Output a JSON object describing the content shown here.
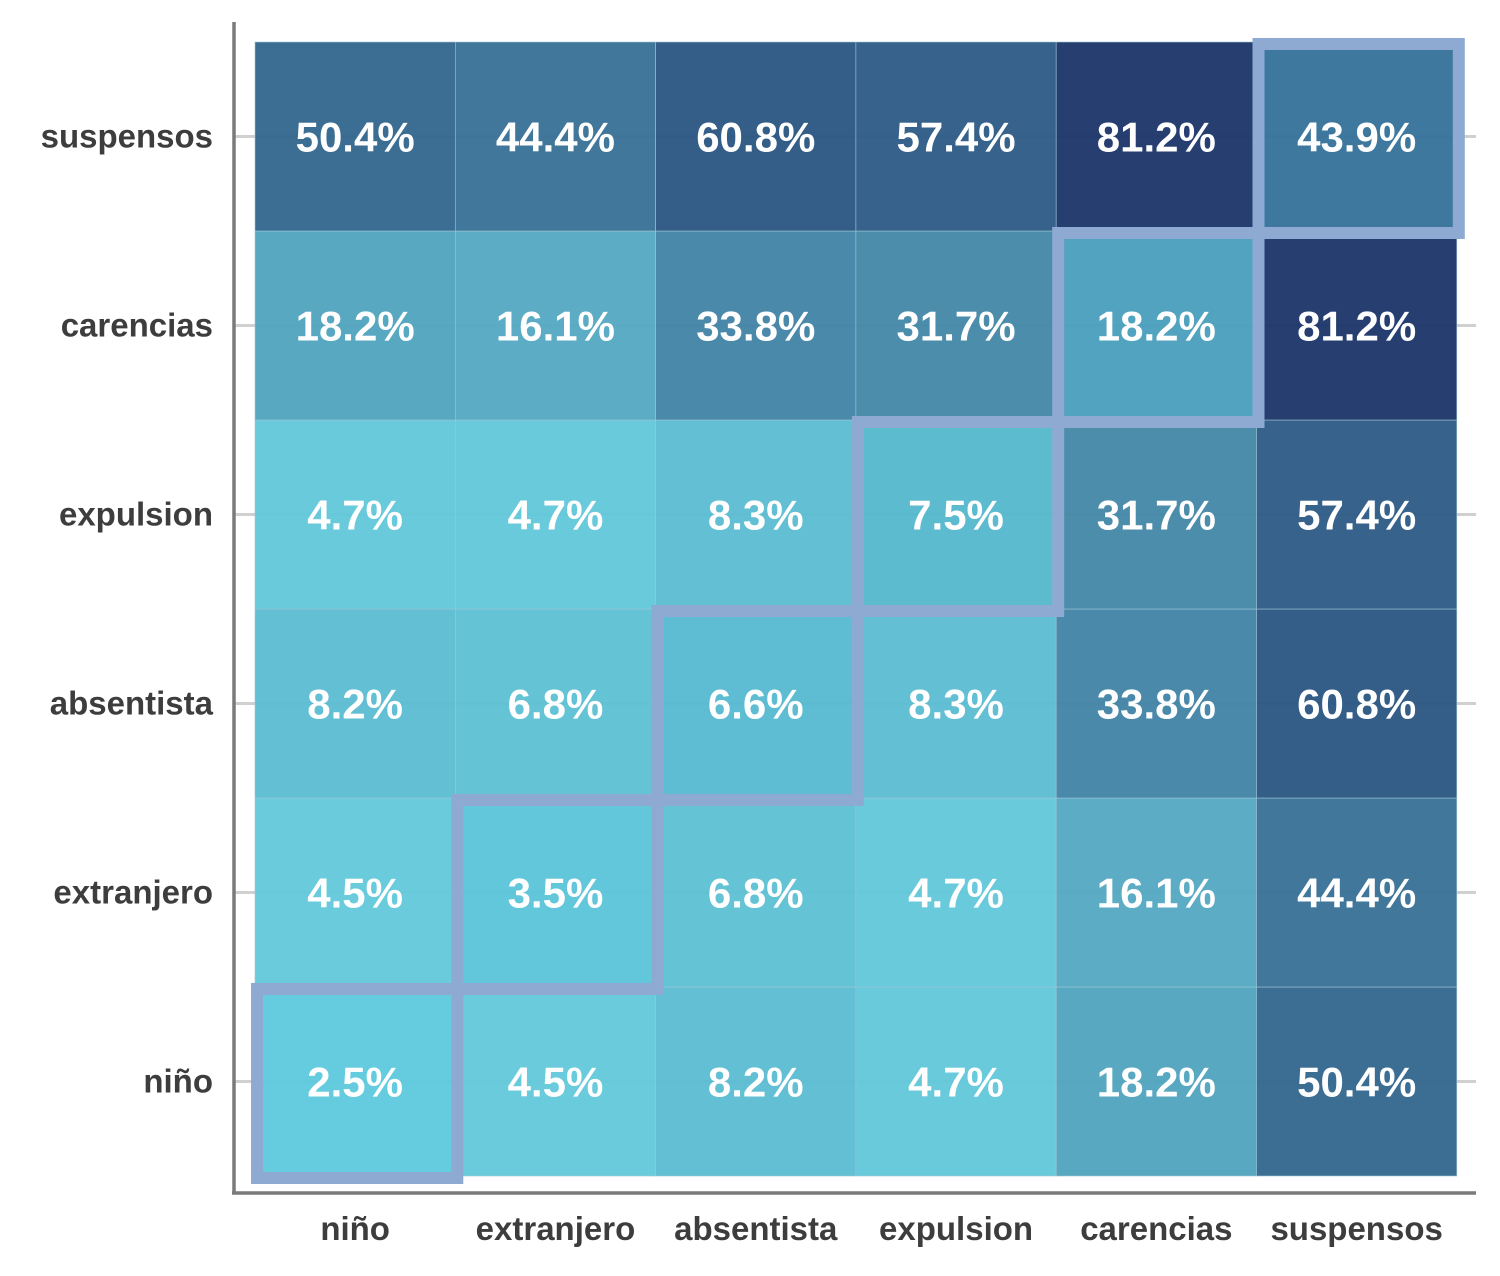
{
  "chart_data": {
    "type": "heatmap",
    "title": "",
    "xlabel": "",
    "ylabel": "",
    "categories_x": [
      "niño",
      "extranjero",
      "absentista",
      "expulsion",
      "carencias",
      "suspensos"
    ],
    "categories_y": [
      "niño",
      "extranjero",
      "absentista",
      "expulsion",
      "carencias",
      "suspensos"
    ],
    "values": [
      [
        2.5,
        4.5,
        8.2,
        4.7,
        18.2,
        50.4
      ],
      [
        4.5,
        3.5,
        6.8,
        4.7,
        16.1,
        44.4
      ],
      [
        8.2,
        6.8,
        6.6,
        8.3,
        33.8,
        60.8
      ],
      [
        4.7,
        4.7,
        8.3,
        7.5,
        31.7,
        57.4
      ],
      [
        18.2,
        16.1,
        33.8,
        31.7,
        18.2,
        81.2
      ],
      [
        50.4,
        44.4,
        60.8,
        57.4,
        81.2,
        43.9
      ]
    ],
    "labels": [
      [
        "2.5%",
        "4.5%",
        "8.2%",
        "4.7%",
        "18.2%",
        "50.4%"
      ],
      [
        "4.5%",
        "3.5%",
        "6.8%",
        "4.7%",
        "16.1%",
        "44.4%"
      ],
      [
        "8.2%",
        "6.8%",
        "6.6%",
        "8.3%",
        "33.8%",
        "60.8%"
      ],
      [
        "4.7%",
        "4.7%",
        "8.3%",
        "7.5%",
        "31.7%",
        "57.4%"
      ],
      [
        "18.2%",
        "16.1%",
        "33.8%",
        "31.7%",
        "18.2%",
        "81.2%"
      ],
      [
        "50.4%",
        "44.4%",
        "60.8%",
        "57.4%",
        "81.2%",
        "43.9%"
      ]
    ],
    "diagonal_highlight": true,
    "grid": true,
    "legend": "none"
  },
  "colors": {
    "low": "#66d2e2",
    "high": "#1a3568",
    "diagonal_low": "#5cc9dc",
    "diagonal_high": "#34719a",
    "highlight_border": "#8eaad3",
    "axis": "#7a7a7a",
    "gridline": "#d0d0d0",
    "tick_text": "#3d3d3d",
    "cell_text": "#ffffff"
  }
}
